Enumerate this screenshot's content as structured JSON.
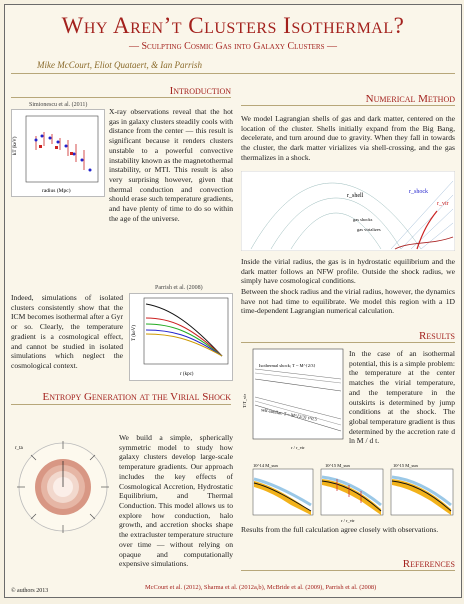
{
  "header": {
    "title": "Why Aren’t Clusters Isothermal?",
    "subtitle": "— Sculpting Cosmic Gas into Galaxy Clusters —",
    "authors": "Mike McCourt, Eliot Quataert, & Ian Parrish"
  },
  "intro": {
    "heading": "Introduction",
    "fig_caption": "Simionescu et al. (2011)",
    "fig_xlabel": "radius (Mpc)",
    "fig_ylabel": "kT (keV)",
    "para1": "X-ray observations reveal that the hot gas in galaxy clusters steadily cools with distance from the center — this result is significant because it renders clusters unstable to a powerful convective instability known as the magnetothermal instability, or MTI. This result is also very surprising however, given that thermal conduction and convection should erase such temperature gradients, and have plenty of time to do so within the age of the universe.",
    "para2": "Indeed, simulations of isolated clusters consistently show that the ICM becomes isothermal after a Gyr or so. Clearly, the temperature gradient is a cosmological effect, and cannot be studied in isolated simulations which neglect the cosmological context.",
    "fig2_caption": "Parrish et al. (2008)",
    "fig2_xlabel": "r (kpc)",
    "fig2_ylabel": "T (keV)"
  },
  "entropy": {
    "heading": "Entropy Generation at the Virial Shock",
    "para": "We build a simple, spherically symmetric model to study how galaxy clusters develop large-scale temperature gradients. Our approach includes the key effects of Cosmological Accretion, Hydrostatic Equilibrium, and Thermal Conduction. This model allows us to explore how conduction, halo growth, and accretion shocks shape the extracluster temperature structure over time — without relying on opaque and computationally expensive simulations.",
    "fig_label": "r_ta"
  },
  "method": {
    "heading": "Numerical Method",
    "para1": "We model Lagrangian shells of gas and dark matter, centered on the location of the cluster. Shells initially expand from the Big Bang, decelerate, and turn around due to gravity. When they fall in towards the cluster, the dark matter virializes via shell-crossing, and the gas thermalizes in a shock.",
    "fig_labels": {
      "rshell": "r_shell",
      "rshock": "r_shock",
      "rvir": "r_vir",
      "gas": "gas shocks",
      "vir": "gas virializes"
    },
    "para2": "Inside the virial radius, the gas is in hydrostatic equilibrium and the dark matter follows an NFW profile. Outside the shock radius, we simply have cosmological conditions.",
    "para3": "Between the shock radius and the virial radius, however, the dynamics have not had time to equilibrate. We model this region with a 1D time-dependent Lagrangian numerical calculation."
  },
  "results": {
    "heading": "Results",
    "fig_top_labels": [
      "Isothermal shock; T ~ M^{2/3}",
      "self-similar: T ~ M^{2/3} t^0.5"
    ],
    "fig_top_ylabel": "T/T_vir",
    "fig_top_xlabel": "r / r_vir",
    "para1": "In the case of an isothermal potential, this is a simple problem: the temperature at the center matches the virial temperature, and the temperature in the outskirts is determined by jump conditions at the shock. The global temperature gradient is thus determined by the accretion rate d ln M / d t.",
    "panel_titles": [
      "10^14 M_sun",
      "10^15 M_sun",
      "10^15 M_sun"
    ],
    "panel_ylabel": "T/T_vir",
    "panel_xlabel": "r / r_vir",
    "para2": "Results from the full calculation agree closely with observations."
  },
  "references": {
    "heading": "References",
    "text": "McCourt et al. (2012), Sharma et al. (2012a,b), McBride et al. (2009), Parrish et al. (2008)"
  },
  "footer": {
    "copyright": "© authors 2013"
  },
  "colors": {
    "accent": "#a3211d",
    "rule": "#b7a77a",
    "gold": "#f2b21a",
    "blue": "#6fb1dd"
  }
}
